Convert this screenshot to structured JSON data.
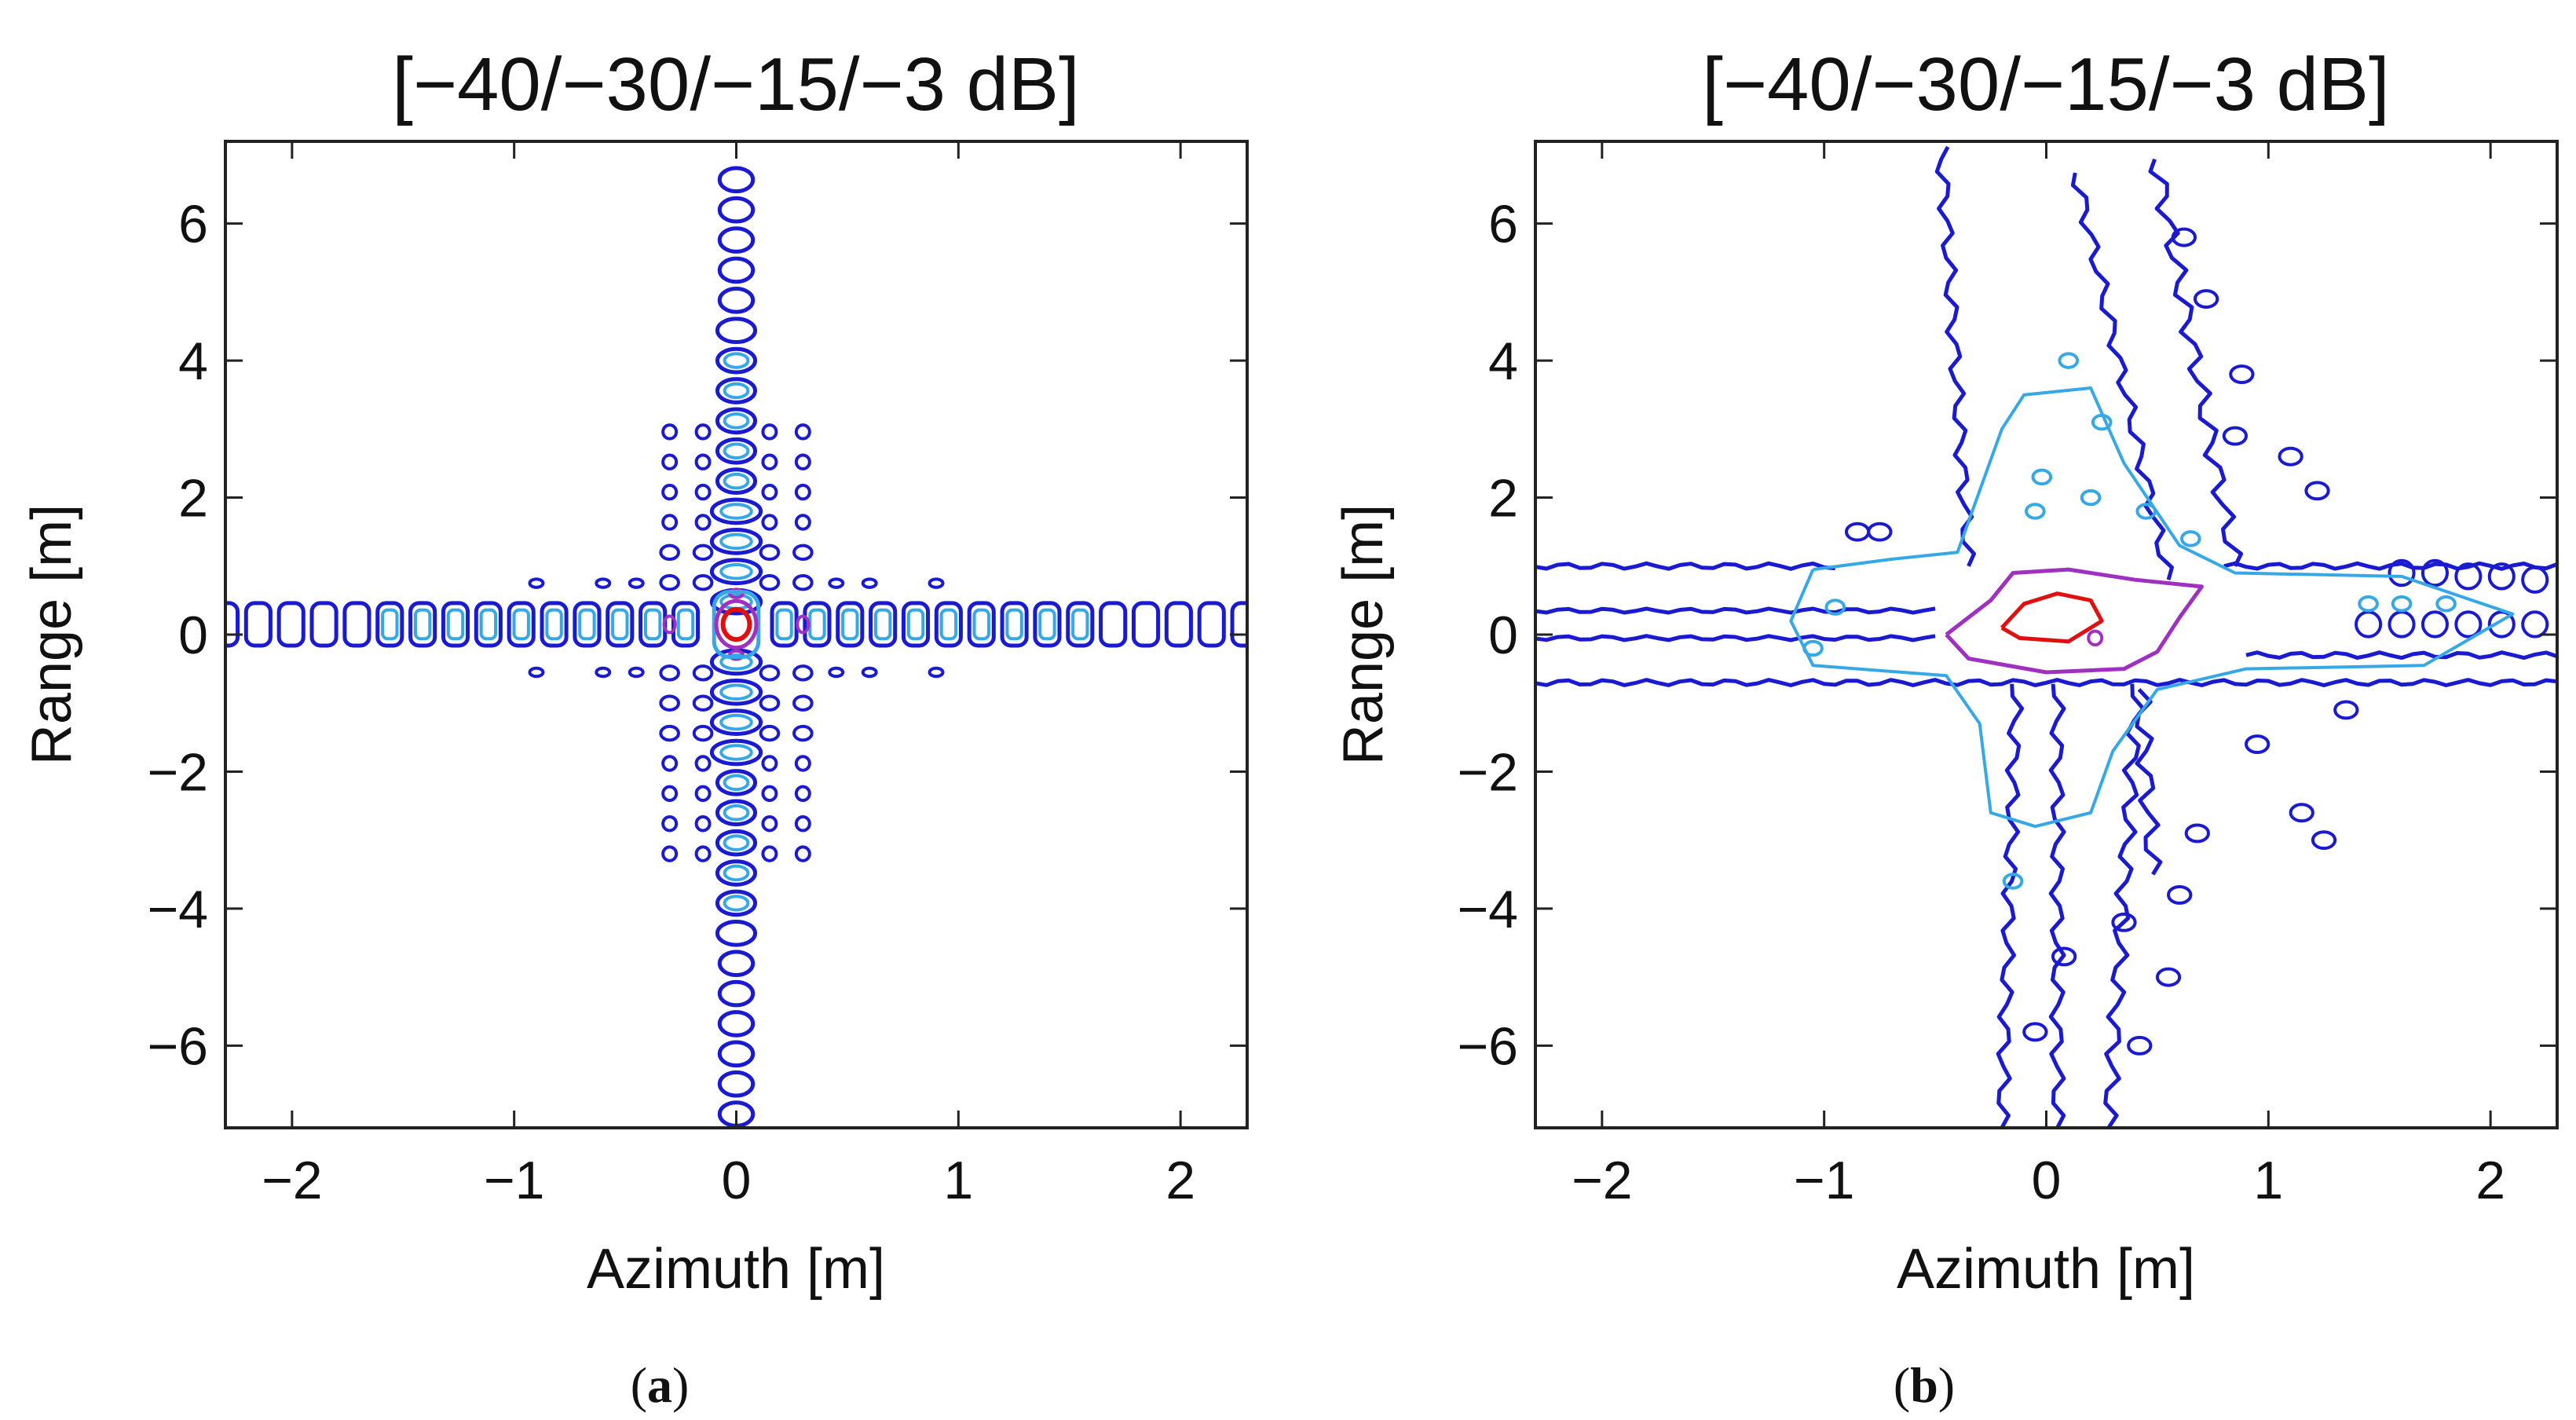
{
  "figure": {
    "panels": [
      {
        "id": "a",
        "caption_letter": "a"
      },
      {
        "id": "b",
        "caption_letter": "b"
      }
    ]
  },
  "chart_data": [
    {
      "type": "contour",
      "panel": "a",
      "title": "[−40/−30/−15/−3 dB]",
      "xlabel": "Azimuth [m]",
      "ylabel": "Range [m]",
      "xlim": [
        -2.3,
        2.3
      ],
      "ylim": [
        -7.2,
        7.2
      ],
      "xticks": [
        -2,
        -1,
        0,
        1,
        2
      ],
      "xtick_labels": [
        "−2",
        "−1",
        "0",
        "1",
        "2"
      ],
      "yticks": [
        -6,
        -4,
        -2,
        0,
        2,
        4,
        6
      ],
      "ytick_labels": [
        "−6",
        "−4",
        "−2",
        "0",
        "2",
        "4",
        "6"
      ],
      "contour_levels_db": [
        -40,
        -30,
        -15,
        -3
      ],
      "level_colors": [
        "#1a1ad0",
        "#36a8e6",
        "#a030c0",
        "#e01010"
      ],
      "description": "Ideal point target response: separable cross-shaped sidelobes along azimuth and range axes"
    },
    {
      "type": "contour",
      "panel": "b",
      "title": "[−40/−30/−15/−3 dB]",
      "xlabel": "Azimuth [m]",
      "ylabel": "Range [m]",
      "xlim": [
        -2.3,
        2.3
      ],
      "ylim": [
        -7.2,
        7.2
      ],
      "xticks": [
        -2,
        -1,
        0,
        1,
        2
      ],
      "xtick_labels": [
        "−2",
        "−1",
        "0",
        "1",
        "2"
      ],
      "yticks": [
        -6,
        -4,
        -2,
        0,
        2,
        4,
        6
      ],
      "ytick_labels": [
        "−6",
        "−4",
        "−2",
        "0",
        "2",
        "4",
        "6"
      ],
      "contour_levels_db": [
        -40,
        -30,
        -15,
        -3
      ],
      "level_colors": [
        "#1a1ad0",
        "#36a8e6",
        "#a030c0",
        "#e01010"
      ],
      "description": "Measured point target response: skewed, non-separable cross with broadened sidelobes"
    }
  ]
}
